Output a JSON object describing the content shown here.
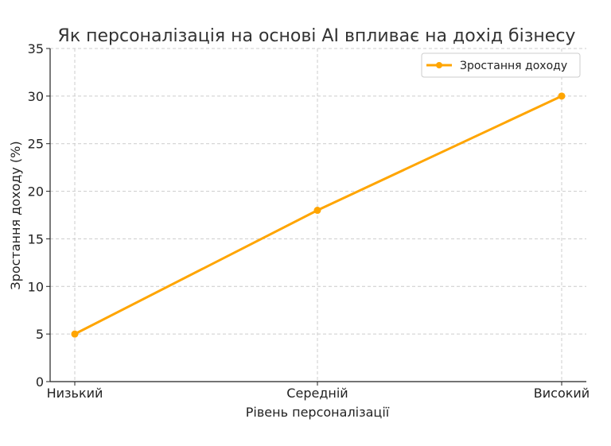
{
  "chart_data": {
    "type": "line",
    "title": "Як персоналізація на основі AI впливає на дохід бізнесу",
    "xlabel": "Рівень персоналізації",
    "ylabel": "Зростання доходу (%)",
    "categories": [
      "Низький",
      "Середній",
      "Високий"
    ],
    "series": [
      {
        "name": "Зростання доходу",
        "values": [
          5,
          18,
          30
        ],
        "color": "#ffa500"
      }
    ],
    "ylim": [
      0,
      35
    ],
    "yticks": [
      0,
      5,
      10,
      15,
      20,
      25,
      30,
      35
    ],
    "grid": true,
    "legend": "top-right"
  }
}
